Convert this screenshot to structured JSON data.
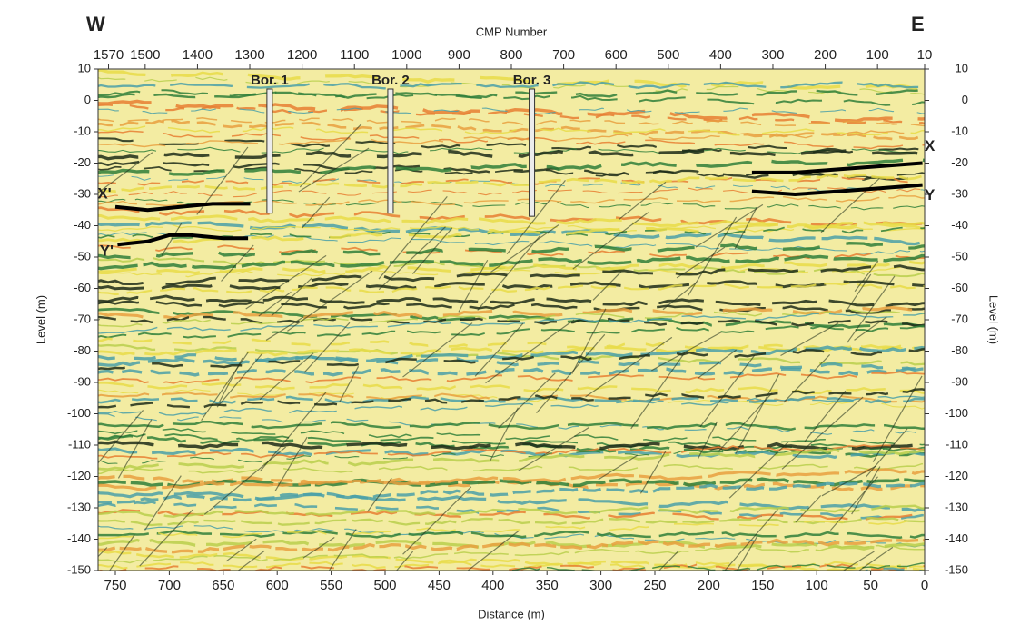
{
  "chart_data": {
    "type": "seismic-section",
    "left_label": "W",
    "right_label": "E",
    "x2_label": "CMP Number",
    "x_label": "Distance (m)",
    "y_label": "Level (m)",
    "y2_label": "Level (m)",
    "xlim": [
      766,
      0
    ],
    "xticks": [
      750,
      700,
      650,
      600,
      550,
      500,
      450,
      400,
      350,
      300,
      250,
      200,
      150,
      100,
      50,
      0
    ],
    "x2lim": [
      1590,
      10
    ],
    "x2ticks": [
      1570,
      1500,
      1400,
      1300,
      1200,
      1100,
      1000,
      900,
      800,
      700,
      600,
      500,
      400,
      300,
      200,
      100,
      10
    ],
    "ylim": [
      -150,
      10
    ],
    "yticks": [
      10,
      0,
      -10,
      -20,
      -30,
      -40,
      -50,
      -60,
      -70,
      -80,
      -90,
      -100,
      -110,
      -120,
      -130,
      -140,
      -150
    ],
    "y2lim": [
      -150,
      10
    ],
    "y2ticks": [
      10,
      0,
      -10,
      -20,
      -30,
      -40,
      -50,
      -60,
      -70,
      -80,
      -90,
      -100,
      -110,
      -120,
      -130,
      -140,
      -150
    ],
    "boreholes": [
      {
        "label": "Bor. 1",
        "distance": 607,
        "bottom": -36
      },
      {
        "label": "Bor. 2",
        "distance": 495,
        "bottom": -36
      },
      {
        "label": "Bor. 3",
        "distance": 364,
        "bottom": -37
      }
    ],
    "horizons": [
      {
        "label": "X'",
        "color": "#000000",
        "x": [
          750,
          720,
          690,
          660,
          625
        ],
        "y": [
          -34,
          -35,
          -34,
          -33,
          -33
        ]
      },
      {
        "label": "Y'",
        "color": "#000000",
        "x": [
          748,
          720,
          700,
          680,
          650,
          627
        ],
        "y": [
          -46,
          -45,
          -43,
          -43,
          -44,
          -44
        ]
      },
      {
        "label": "X",
        "color": "#000000",
        "x": [
          160,
          120,
          80,
          40,
          2
        ],
        "y": [
          -23,
          -23,
          -22,
          -21,
          -20
        ]
      },
      {
        "label": "Y",
        "color": "#000000",
        "x": [
          160,
          120,
          80,
          40,
          2
        ],
        "y": [
          -29,
          -30,
          -29,
          -28,
          -27
        ]
      }
    ]
  }
}
